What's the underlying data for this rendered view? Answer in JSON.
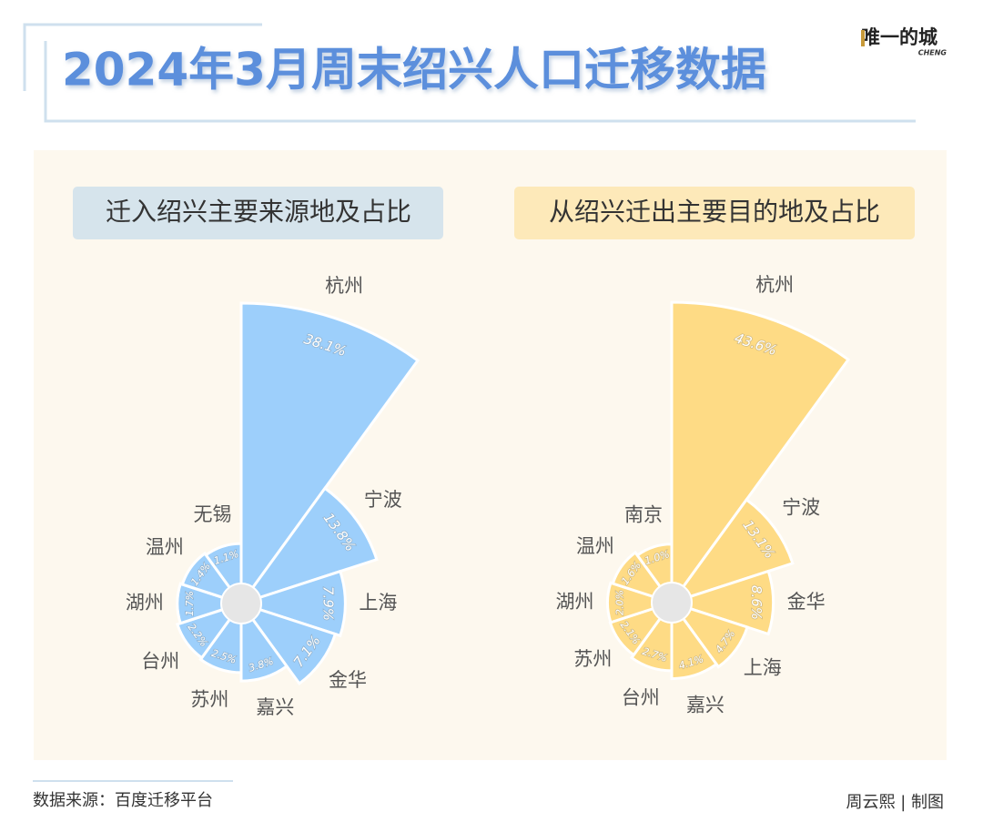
{
  "header": {
    "title": "2024年3月周末绍兴人口迁移数据",
    "logo": "唯一的城",
    "logo_sub": "CHENG"
  },
  "chart_data": [
    {
      "type": "rose",
      "title": "迁入绍兴主要来源地及占比",
      "color": "#9dcffb",
      "categories": [
        "杭州",
        "宁波",
        "上海",
        "金华",
        "嘉兴",
        "苏州",
        "台州",
        "湖州",
        "温州",
        "无锡"
      ],
      "values": [
        38.1,
        13.8,
        7.9,
        7.1,
        3.8,
        2.5,
        2.2,
        1.7,
        1.4,
        1.1
      ],
      "value_labels": [
        "38.1%",
        "13.8%",
        "7.9%",
        "7.1%",
        "3.8%",
        "2.5%",
        "2.2%",
        "1.7%",
        "1.4%",
        "1.1%"
      ]
    },
    {
      "type": "rose",
      "title": "从绍兴迁出主要目的地及占比",
      "color": "#fedb85",
      "categories": [
        "杭州",
        "宁波",
        "金华",
        "上海",
        "嘉兴",
        "台州",
        "苏州",
        "湖州",
        "温州",
        "南京"
      ],
      "values": [
        43.6,
        13.1,
        8.6,
        4.7,
        4.1,
        2.7,
        2.1,
        2.0,
        1.6,
        1.0
      ],
      "value_labels": [
        "43.6%",
        "13.1%",
        "8.6%",
        "4.7%",
        "4.1%",
        "2.7%",
        "2.1%",
        "2.0%",
        "1.6%",
        "1.0%"
      ]
    }
  ],
  "footer": {
    "source": "数据来源：百度迁移平台",
    "credit": "周云熙 | 制图"
  }
}
